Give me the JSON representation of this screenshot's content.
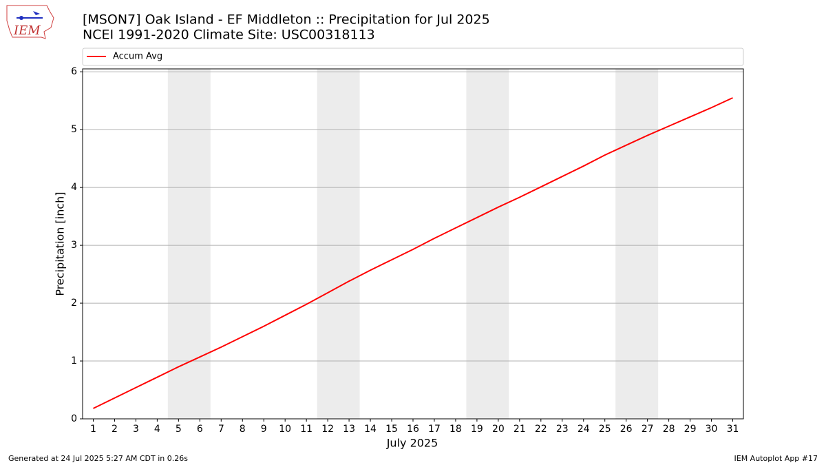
{
  "logo_text": "IEM",
  "footer_left": "Generated at 24 Jul 2025 5:27 AM CDT in 0.26s",
  "footer_right": "IEM Autoplot App #17",
  "chart_data": {
    "type": "line",
    "title": "[MSON7] Oak Island - EF Middleton :: Precipitation for Jul 2025",
    "subtitle": "NCEI 1991-2020 Climate Site: USC00318113",
    "x_label": "July 2025",
    "y_label": "Precipitation [inch]",
    "x": [
      1,
      2,
      3,
      4,
      5,
      6,
      7,
      8,
      9,
      10,
      11,
      12,
      13,
      14,
      15,
      16,
      17,
      18,
      19,
      20,
      21,
      22,
      23,
      24,
      25,
      26,
      27,
      28,
      29,
      30,
      31
    ],
    "series": [
      {
        "name": "Accum Avg",
        "color": "#ff0000",
        "values": [
          0.18,
          0.36,
          0.54,
          0.72,
          0.9,
          1.07,
          1.24,
          1.42,
          1.6,
          1.79,
          1.98,
          2.18,
          2.38,
          2.57,
          2.75,
          2.93,
          3.12,
          3.3,
          3.48,
          3.66,
          3.83,
          4.01,
          4.19,
          4.37,
          4.56,
          4.73,
          4.9,
          5.06,
          5.22,
          5.38,
          5.55
        ]
      }
    ],
    "shaded_spans": [
      [
        4.5,
        6.5
      ],
      [
        11.5,
        13.5
      ],
      [
        18.5,
        20.5
      ],
      [
        25.5,
        27.5
      ]
    ],
    "shade_color": "#ececec",
    "xlim": [
      0.5,
      31.5
    ],
    "xticks": [
      1,
      2,
      3,
      4,
      5,
      6,
      7,
      8,
      9,
      10,
      11,
      12,
      13,
      14,
      15,
      16,
      17,
      18,
      19,
      20,
      21,
      22,
      23,
      24,
      25,
      26,
      27,
      28,
      29,
      30,
      31
    ],
    "ylim": [
      0,
      6.05
    ],
    "yticks": [
      0,
      1,
      2,
      3,
      4,
      5,
      6
    ],
    "grid": true,
    "legend": "top"
  }
}
